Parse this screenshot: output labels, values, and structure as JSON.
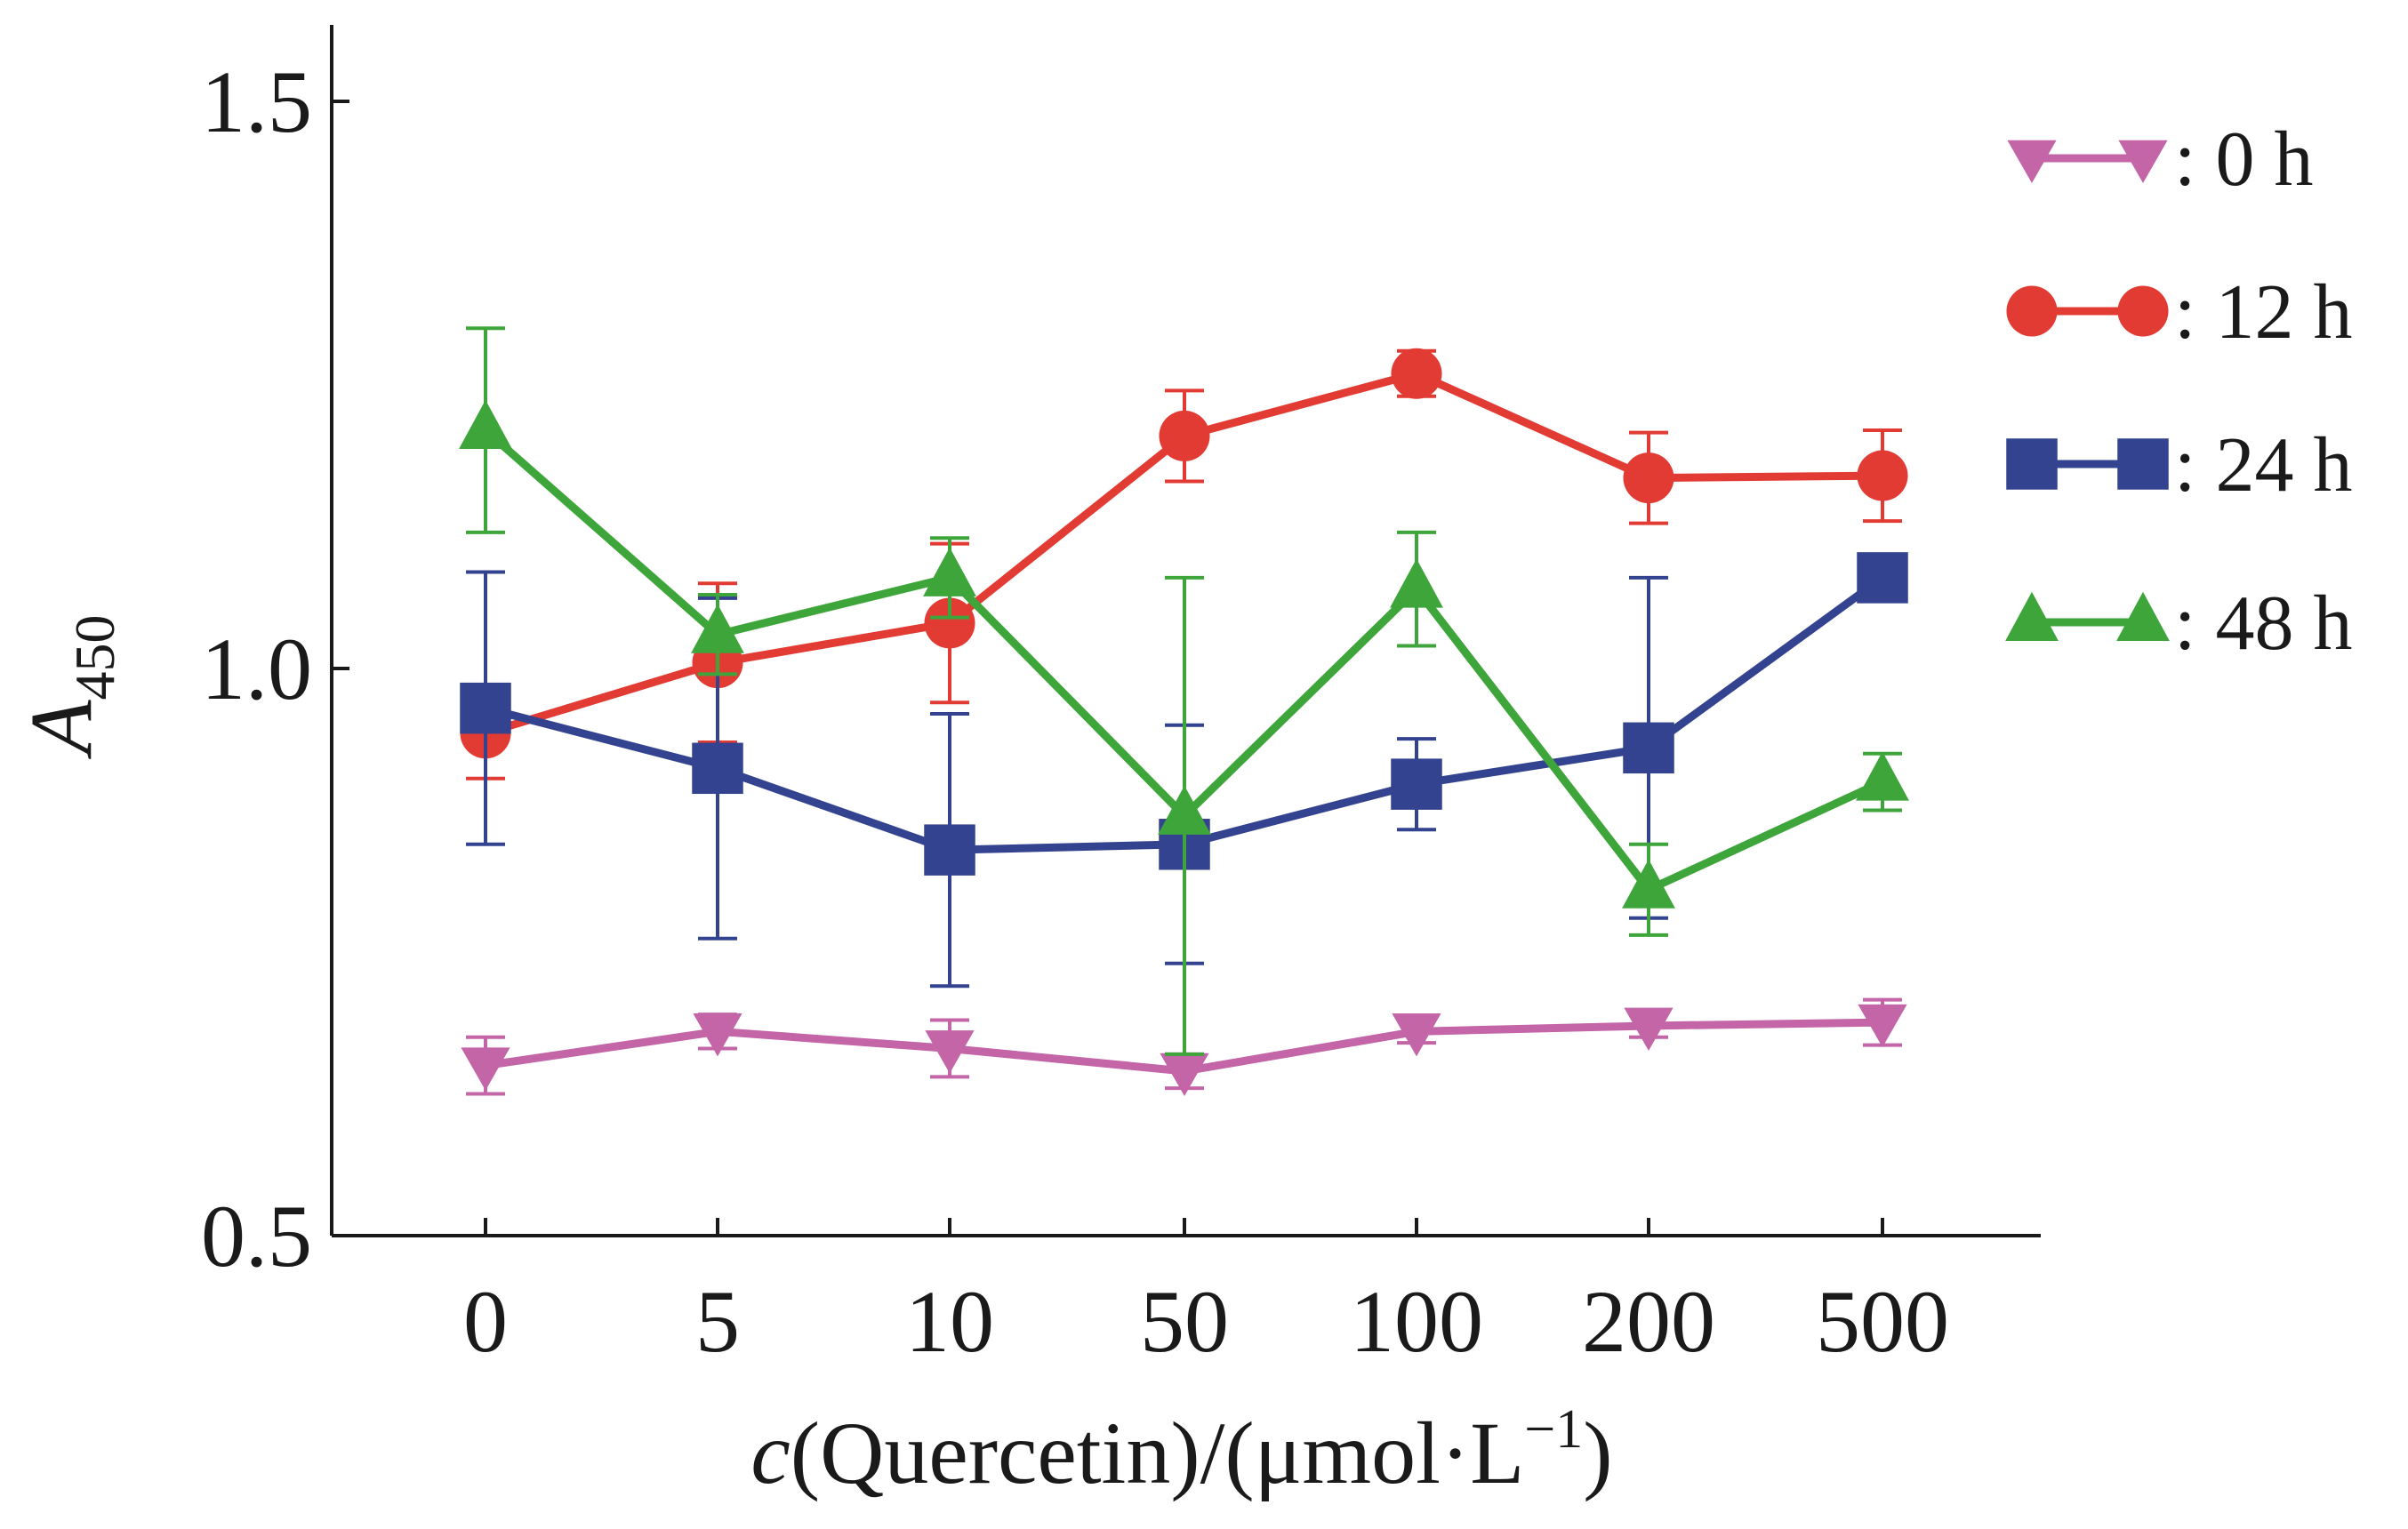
{
  "chart_data": {
    "type": "line",
    "categories": [
      "0",
      "5",
      "10",
      "50",
      "100",
      "200",
      "500"
    ],
    "ylabel": "A450",
    "ylabel_main": "A",
    "ylabel_sub": "450",
    "xlabel": "c(Quercetin)/(μmol·L⁻¹)",
    "xlabel_italic": "c",
    "xlabel_rest": "(Quercetin)/(μmol·L",
    "xlabel_sup": "−1",
    "xlabel_close": ")",
    "ylim": [
      0.5,
      1.55
    ],
    "yticks": [
      "0.5",
      "1.0",
      "1.5"
    ],
    "ytick_values": [
      0.5,
      1.0,
      1.5
    ],
    "grid": false,
    "legend_position": "top-right",
    "series": [
      {
        "name": ": 0 h",
        "color": "#c365a6",
        "marker": "triangle-down",
        "values": [
          0.65,
          0.68,
          0.665,
          0.645,
          0.68,
          0.685,
          0.688
        ],
        "errors": [
          0.025,
          0.015,
          0.025,
          0.015,
          0.01,
          0.01,
          0.02
        ]
      },
      {
        "name": ": 12 h",
        "color": "#e23b34",
        "marker": "circle",
        "values": [
          0.943,
          1.005,
          1.04,
          1.205,
          1.26,
          1.168,
          1.17
        ],
        "errors": [
          0.04,
          0.07,
          0.07,
          0.04,
          0.02,
          0.04,
          0.04
        ]
      },
      {
        "name": ": 24 h",
        "color": "#34438f",
        "marker": "square",
        "values": [
          0.965,
          0.912,
          0.84,
          0.845,
          0.898,
          0.93,
          1.08
        ],
        "errors": [
          0.12,
          0.15,
          0.12,
          0.105,
          0.04,
          0.15,
          0
        ]
      },
      {
        "name": ": 48 h",
        "color": "#3ea53b",
        "marker": "triangle-up",
        "values": [
          1.21,
          1.03,
          1.08,
          0.87,
          1.07,
          0.805,
          0.9
        ],
        "errors": [
          0.09,
          0.035,
          0.035,
          0.21,
          0.05,
          0.04,
          0.025
        ]
      }
    ]
  }
}
